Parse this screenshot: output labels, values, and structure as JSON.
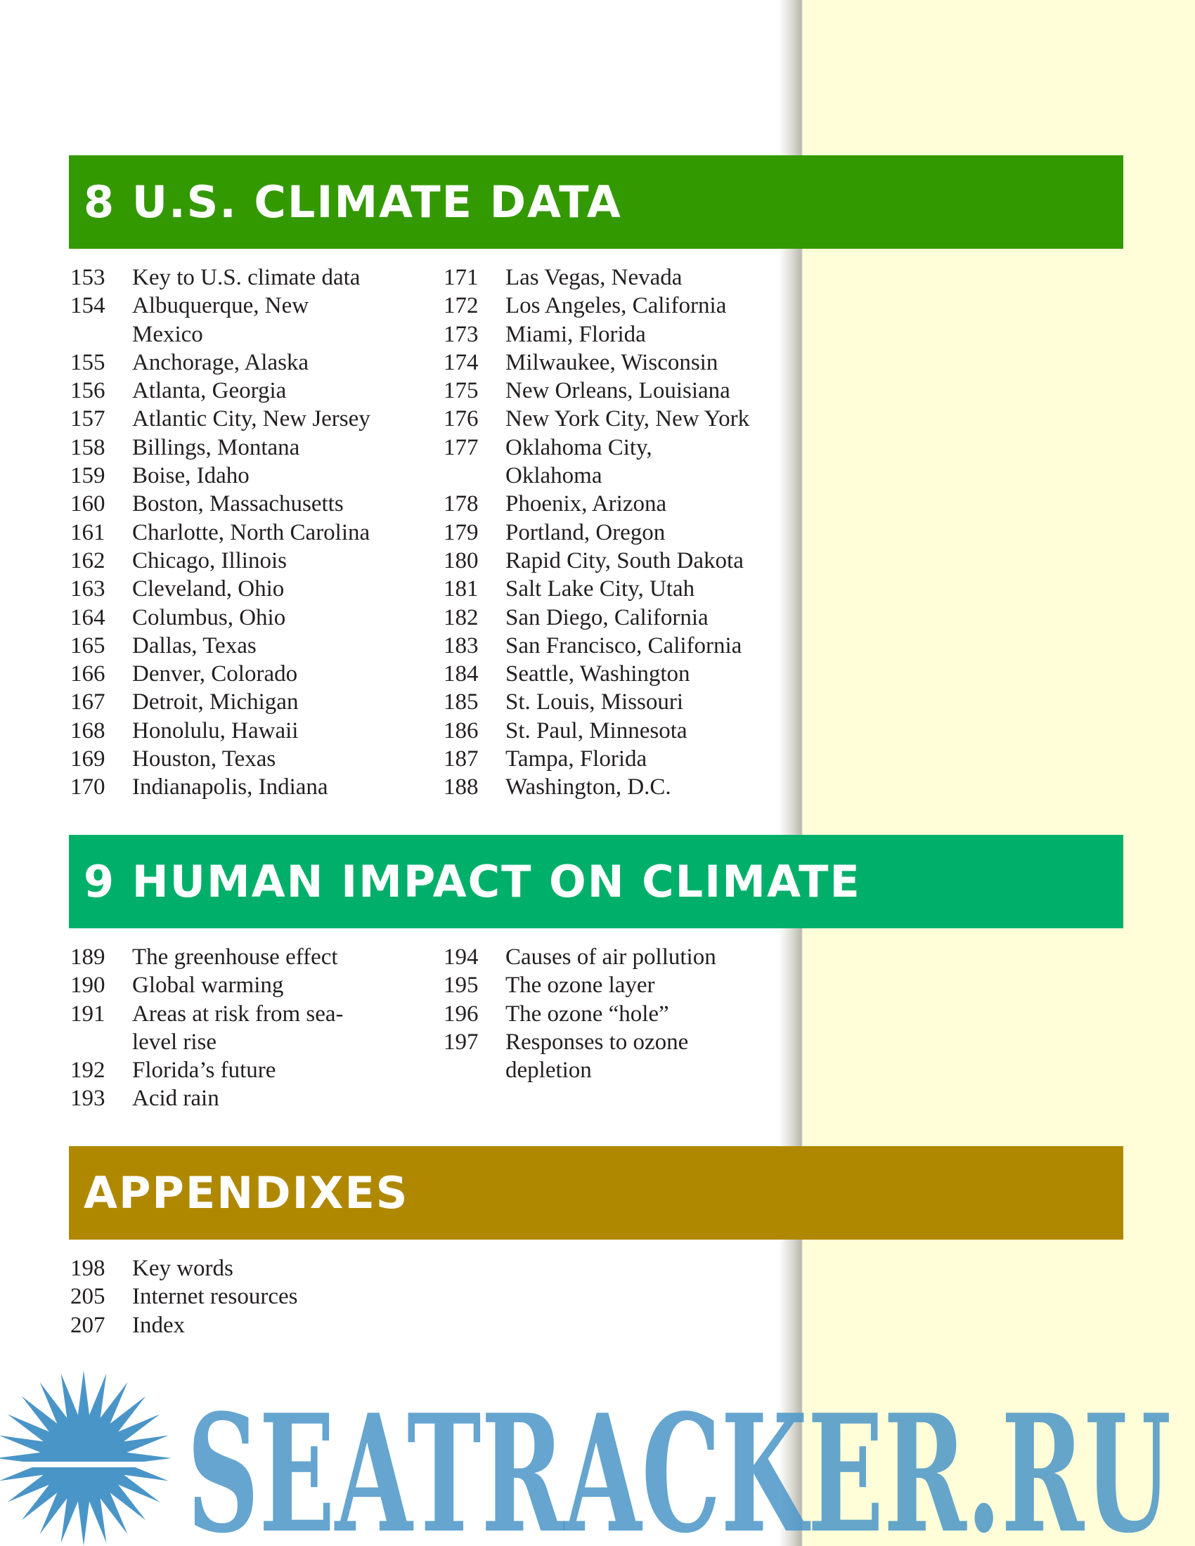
{
  "sections": [
    {
      "title": "8 U.S. CLIMATE DATA",
      "color": "#339900",
      "left": [
        {
          "page": 153,
          "text": "Key to U.S. climate data"
        },
        {
          "page": 154,
          "text": "Albuquerque, New\nMexico"
        },
        {
          "page": 155,
          "text": "Anchorage, Alaska"
        },
        {
          "page": 156,
          "text": "Atlanta, Georgia"
        },
        {
          "page": 157,
          "text": "Atlantic City, New Jersey"
        },
        {
          "page": 158,
          "text": "Billings, Montana"
        },
        {
          "page": 159,
          "text": "Boise, Idaho"
        },
        {
          "page": 160,
          "text": "Boston, Massachusetts"
        },
        {
          "page": 161,
          "text": "Charlotte, North Carolina"
        },
        {
          "page": 162,
          "text": "Chicago, Illinois"
        },
        {
          "page": 163,
          "text": "Cleveland, Ohio"
        },
        {
          "page": 164,
          "text": "Columbus, Ohio"
        },
        {
          "page": 165,
          "text": "Dallas, Texas"
        },
        {
          "page": 166,
          "text": "Denver, Colorado"
        },
        {
          "page": 167,
          "text": "Detroit, Michigan"
        },
        {
          "page": 168,
          "text": "Honolulu, Hawaii"
        },
        {
          "page": 169,
          "text": "Houston, Texas"
        },
        {
          "page": 170,
          "text": "Indianapolis, Indiana"
        }
      ],
      "right": [
        {
          "page": 171,
          "text": "Las Vegas, Nevada"
        },
        {
          "page": 172,
          "text": "Los Angeles, California"
        },
        {
          "page": 173,
          "text": "Miami, Florida"
        },
        {
          "page": 174,
          "text": "Milwaukee, Wisconsin"
        },
        {
          "page": 175,
          "text": "New Orleans, Louisiana"
        },
        {
          "page": 176,
          "text": "New York City, New York"
        },
        {
          "page": 177,
          "text": "Oklahoma City,\nOklahoma"
        },
        {
          "page": 178,
          "text": "Phoenix, Arizona"
        },
        {
          "page": 179,
          "text": "Portland, Oregon"
        },
        {
          "page": 180,
          "text": "Rapid City, South Dakota"
        },
        {
          "page": 181,
          "text": "Salt Lake City, Utah"
        },
        {
          "page": 182,
          "text": "San Diego, California"
        },
        {
          "page": 183,
          "text": "San Francisco, California"
        },
        {
          "page": 184,
          "text": "Seattle, Washington"
        },
        {
          "page": 185,
          "text": "St. Louis, Missouri"
        },
        {
          "page": 186,
          "text": "St. Paul, Minnesota"
        },
        {
          "page": 187,
          "text": "Tampa, Florida"
        },
        {
          "page": 188,
          "text": "Washington, D.C."
        }
      ]
    },
    {
      "title": "9 HUMAN IMPACT ON CLIMATE",
      "color": "#00b06a",
      "left": [
        {
          "page": 189,
          "text": "The greenhouse effect"
        },
        {
          "page": 190,
          "text": "Global warming"
        },
        {
          "page": 191,
          "text": "Areas at risk from sea-\nlevel rise"
        },
        {
          "page": 192,
          "text": "Florida’s future"
        },
        {
          "page": 193,
          "text": "Acid rain"
        }
      ],
      "right": [
        {
          "page": 194,
          "text": "Causes of air pollution"
        },
        {
          "page": 195,
          "text": "The ozone layer"
        },
        {
          "page": 196,
          "text": "The ozone “hole”"
        },
        {
          "page": 197,
          "text": "Responses to ozone\ndepletion"
        }
      ]
    },
    {
      "title": "APPENDIXES",
      "color": "#b08800",
      "left": [
        {
          "page": 198,
          "text": "Key words"
        },
        {
          "page": 205,
          "text": "Internet resources"
        },
        {
          "page": 207,
          "text": "Index"
        }
      ],
      "right": []
    }
  ],
  "watermark": "SEATRACKER.RU"
}
